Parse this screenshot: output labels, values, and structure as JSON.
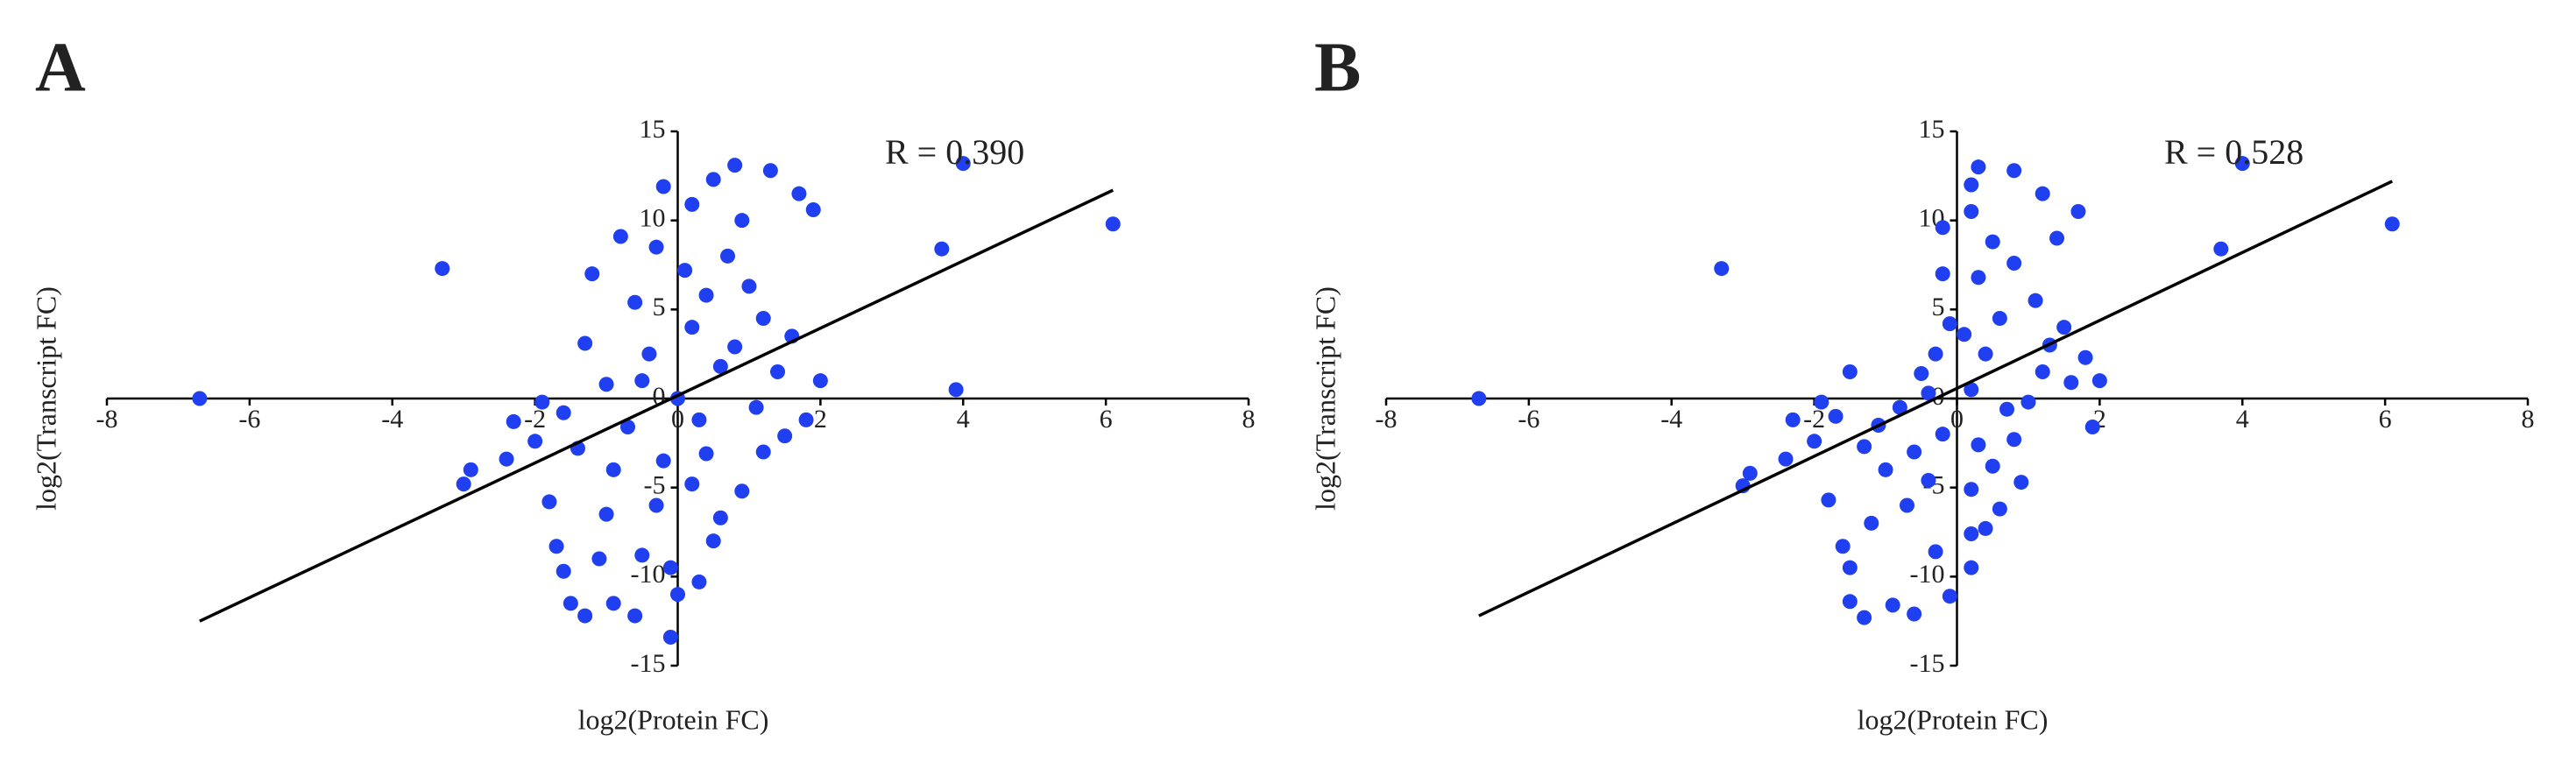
{
  "chart_data": [
    {
      "type": "scatter",
      "panel_label": "A",
      "xlabel": "log2(Protein FC)",
      "ylabel": "log2(Transcript FC)",
      "annotation": "R = 0.390",
      "color": "#1f3ff0",
      "xlim": [
        -8,
        8
      ],
      "ylim": [
        -15,
        15
      ],
      "xticks": [
        -8,
        -6,
        -4,
        -2,
        0,
        2,
        4,
        6,
        8
      ],
      "yticks": [
        -15,
        -10,
        -5,
        0,
        5,
        10,
        15
      ],
      "fit": {
        "x": [
          -6.7,
          6.1
        ],
        "y": [
          -12.5,
          11.7
        ]
      },
      "x": [
        -6.7,
        -3.3,
        -3.0,
        -2.9,
        -2.4,
        -2.3,
        -2.0,
        -1.9,
        -1.8,
        -1.7,
        -1.6,
        -1.5,
        -1.3,
        -0.9,
        -0.6,
        -0.1,
        0,
        0.3,
        1.3,
        1.7,
        1.9,
        0.8,
        0.5,
        -0.2,
        0.2,
        3.7,
        4.0,
        3.9,
        6.1,
        2.0,
        1.8,
        1.5,
        1.2,
        -1.3,
        -1.2,
        -0.8,
        0.7,
        1.0,
        -0.5,
        0.5,
        -1.0,
        0.9,
        -0.3,
        0.4,
        -0.4,
        0.2,
        0.6,
        -0.7,
        -1.0,
        1.1,
        0.0,
        0.3,
        -0.2,
        0.8,
        -0.6,
        0.1,
        1.4,
        -1.4,
        -0.9,
        0.6,
        -0.1,
        0.9,
        -0.3,
        1.6,
        -1.6,
        0.4,
        0.2,
        -0.5,
        1.2,
        -1.1
      ],
      "values": [
        0,
        7.3,
        -4.8,
        -4.0,
        -3.4,
        -1.3,
        -2.4,
        -0.2,
        -5.8,
        -8.3,
        -9.7,
        -11.5,
        -12.2,
        -11.5,
        -12.2,
        -13.4,
        -11.0,
        -10.3,
        12.8,
        11.5,
        10.6,
        13.1,
        12.3,
        11.9,
        10.9,
        8.4,
        13.2,
        0.5,
        9.8,
        1.0,
        -1.2,
        -2.1,
        4.5,
        3.1,
        7.0,
        9.1,
        8.0,
        6.3,
        -8.8,
        -8.0,
        -6.5,
        -5.2,
        -6.0,
        -3.1,
        2.5,
        4.0,
        1.8,
        -1.6,
        0.8,
        -0.5,
        0.0,
        -1.2,
        -3.5,
        2.9,
        5.4,
        7.2,
        1.5,
        -2.8,
        -4.0,
        -6.7,
        -9.5,
        10.0,
        8.5,
        3.5,
        -0.8,
        5.8,
        -4.8,
        1.0,
        -3.0,
        -9.0
      ]
    },
    {
      "type": "scatter",
      "panel_label": "B",
      "xlabel": "log2(Protein FC)",
      "ylabel": "log2(Transcript FC)",
      "annotation": "R = 0.528",
      "color": "#1f3ff0",
      "xlim": [
        -8,
        8
      ],
      "ylim": [
        -15,
        15
      ],
      "xticks": [
        -8,
        -6,
        -4,
        -2,
        0,
        2,
        4,
        6,
        8
      ],
      "yticks": [
        -15,
        -10,
        -5,
        0,
        5,
        10,
        15
      ],
      "fit": {
        "x": [
          -6.7,
          6.1
        ],
        "y": [
          -12.2,
          12.2
        ]
      },
      "x": [
        -6.7,
        -3.3,
        -3.0,
        -2.9,
        -2.4,
        -2.3,
        -2.0,
        -1.9,
        -1.8,
        -1.6,
        -1.5,
        -1.5,
        -1.3,
        -0.9,
        -0.6,
        -0.1,
        -0.3,
        -0.2,
        -0.2,
        -0.1,
        -0.3,
        -0.5,
        -0.8,
        -1.1,
        -1.3,
        -0.6,
        -0.4,
        -1.0,
        -0.7,
        -1.2,
        -0.2,
        -0.4,
        -1.5,
        -1.7,
        0.2,
        0.3,
        0.8,
        1.2,
        1.7,
        1.4,
        0.2,
        0.5,
        0.8,
        0.3,
        1.1,
        0.6,
        1.5,
        1.8,
        2.0,
        1.6,
        1.2,
        0.4,
        0.2,
        0.7,
        0.3,
        0.5,
        0.9,
        0.2,
        0.6,
        0.4,
        0.2,
        0.8,
        1.0,
        1.9,
        0.2,
        3.7,
        4.0,
        6.1,
        0.1,
        1.3
      ],
      "values": [
        0,
        7.3,
        -4.9,
        -4.2,
        -3.4,
        -1.2,
        -2.4,
        -0.2,
        -5.7,
        -8.3,
        -9.5,
        -11.4,
        -12.3,
        -11.6,
        -12.1,
        -11.1,
        -8.6,
        9.6,
        7.0,
        4.2,
        2.5,
        1.4,
        -0.5,
        -1.5,
        -2.7,
        -3.0,
        -4.6,
        -4.0,
        -6.0,
        -7.0,
        -2.0,
        0.3,
        1.5,
        -1.0,
        12.0,
        13.0,
        12.8,
        11.5,
        10.5,
        9.0,
        10.5,
        8.8,
        7.6,
        6.8,
        5.5,
        4.5,
        4.0,
        2.3,
        1.0,
        0.9,
        1.5,
        2.5,
        0.5,
        -0.6,
        -2.6,
        -3.8,
        -4.7,
        -5.1,
        -6.2,
        -7.3,
        -7.6,
        -2.3,
        -0.2,
        -1.6,
        -9.5,
        8.4,
        13.2,
        9.8,
        3.6,
        3.0
      ]
    }
  ]
}
